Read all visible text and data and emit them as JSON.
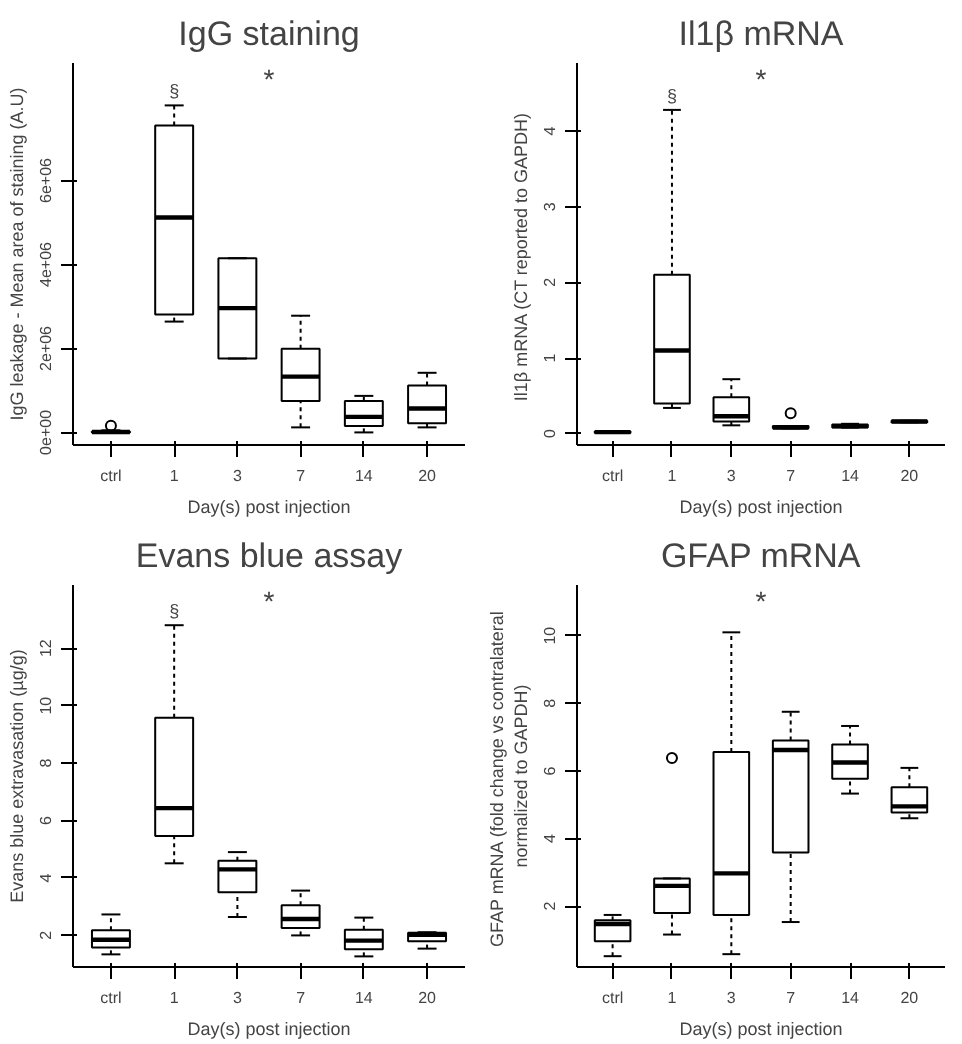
{
  "chart_data": [
    {
      "type": "box",
      "title": "IgG staining",
      "xlabel": "Day(s) post injection",
      "ylabel": "IgG leakage - Mean area of staining (A.U)",
      "categories": [
        "ctrl",
        "1",
        "3",
        "7",
        "14",
        "20"
      ],
      "ylim": [
        -300000,
        8800000
      ],
      "yticks": [
        {
          "value": 0,
          "label": "0e+00"
        },
        {
          "value": 2000000,
          "label": "2e+06"
        },
        {
          "value": 4000000,
          "label": "4e+06"
        },
        {
          "value": 6000000,
          "label": "6e+06"
        }
      ],
      "grid": false,
      "boxes": [
        {
          "low": 0,
          "q1": 0,
          "median": 10000,
          "q3": 20000,
          "high": 50000,
          "outliers": [
            160000
          ]
        },
        {
          "low": 2640000,
          "q1": 2810000,
          "median": 5120000,
          "q3": 7310000,
          "high": 7790000
        },
        {
          "low": 1760000,
          "q1": 1760000,
          "median": 2960000,
          "q3": 4150000,
          "high": 4150000
        },
        {
          "low": 120000,
          "q1": 750000,
          "median": 1330000,
          "q3": 1990000,
          "high": 2780000
        },
        {
          "low": 0,
          "q1": 150000,
          "median": 370000,
          "q3": 750000,
          "high": 870000
        },
        {
          "low": 120000,
          "q1": 220000,
          "median": 570000,
          "q3": 1120000,
          "high": 1420000
        }
      ],
      "annotations": [
        "*",
        "§"
      ]
    },
    {
      "type": "box",
      "title": "Il1β mRNA",
      "xlabel": "Day(s) post injection",
      "ylabel": "Il1β  mRNA (CT reported to GAPDH)",
      "categories": [
        "ctrl",
        "1",
        "3",
        "7",
        "14",
        "20"
      ],
      "ylim": [
        -0.15,
        4.9
      ],
      "yticks": [
        0,
        1,
        2,
        3,
        4
      ],
      "grid": false,
      "boxes": [
        {
          "low": 0.01,
          "q1": 0.01,
          "median": 0.02,
          "q3": 0.03,
          "high": 0.03
        },
        {
          "low": 0.34,
          "q1": 0.4,
          "median": 1.1,
          "q3": 2.1,
          "high": 4.28
        },
        {
          "low": 0.11,
          "q1": 0.16,
          "median": 0.23,
          "q3": 0.48,
          "high": 0.72
        },
        {
          "low": 0.07,
          "q1": 0.07,
          "median": 0.08,
          "q3": 0.1,
          "high": 0.1,
          "outliers": [
            0.27
          ]
        },
        {
          "low": 0.08,
          "q1": 0.08,
          "median": 0.1,
          "q3": 0.12,
          "high": 0.13
        },
        {
          "low": 0.15,
          "q1": 0.15,
          "median": 0.16,
          "q3": 0.17,
          "high": 0.17
        }
      ],
      "annotations": [
        "*",
        "§"
      ]
    },
    {
      "type": "box",
      "title": "Evans blue assay",
      "xlabel": "Day(s) post injection",
      "ylabel": "Evans blue extravasation (µg/g)",
      "categories": [
        "ctrl",
        "1",
        "3",
        "7",
        "14",
        "20"
      ],
      "ylim": [
        0.9,
        14.2
      ],
      "yticks": [
        2,
        4,
        6,
        8,
        10,
        12
      ],
      "grid": false,
      "boxes": [
        {
          "low": 1.34,
          "q1": 1.58,
          "median": 1.85,
          "q3": 2.18,
          "high": 2.73
        },
        {
          "low": 4.51,
          "q1": 5.46,
          "median": 6.43,
          "q3": 9.58,
          "high": 12.8
        },
        {
          "low": 2.64,
          "q1": 3.5,
          "median": 4.3,
          "q3": 4.6,
          "high": 4.9
        },
        {
          "low": 2.0,
          "q1": 2.26,
          "median": 2.57,
          "q3": 3.05,
          "high": 3.56
        },
        {
          "low": 1.27,
          "q1": 1.52,
          "median": 1.82,
          "q3": 2.2,
          "high": 2.62
        },
        {
          "low": 1.54,
          "q1": 1.8,
          "median": 2.02,
          "q3": 2.09,
          "high": 2.11
        }
      ],
      "annotations": [
        "*",
        "§"
      ]
    },
    {
      "type": "box",
      "title": "GFAP mRNA",
      "xlabel": "Day(s) post injection",
      "ylabel": "GFAP  mRNA (fold change vs contralateral\nnormalized to GAPDH)",
      "categories": [
        "ctrl",
        "1",
        "3",
        "7",
        "14",
        "20"
      ],
      "ylim": [
        0.2,
        11.5
      ],
      "yticks": [
        2,
        4,
        6,
        8,
        10
      ],
      "grid": false,
      "boxes": [
        {
          "low": 0.52,
          "q1": 0.96,
          "median": 1.47,
          "q3": 1.58,
          "high": 1.74
        },
        {
          "low": 1.16,
          "q1": 1.8,
          "median": 2.6,
          "q3": 2.82,
          "high": 2.82,
          "outliers": [
            6.38
          ]
        },
        {
          "low": 0.58,
          "q1": 1.74,
          "median": 2.97,
          "q3": 6.56,
          "high": 10.1
        },
        {
          "low": 1.53,
          "q1": 3.59,
          "median": 6.62,
          "q3": 6.9,
          "high": 7.75
        },
        {
          "low": 5.33,
          "q1": 5.77,
          "median": 6.25,
          "q3": 6.78,
          "high": 7.33
        },
        {
          "low": 4.6,
          "q1": 4.77,
          "median": 4.95,
          "q3": 5.52,
          "high": 6.09
        }
      ],
      "annotations": [
        "*"
      ]
    }
  ]
}
